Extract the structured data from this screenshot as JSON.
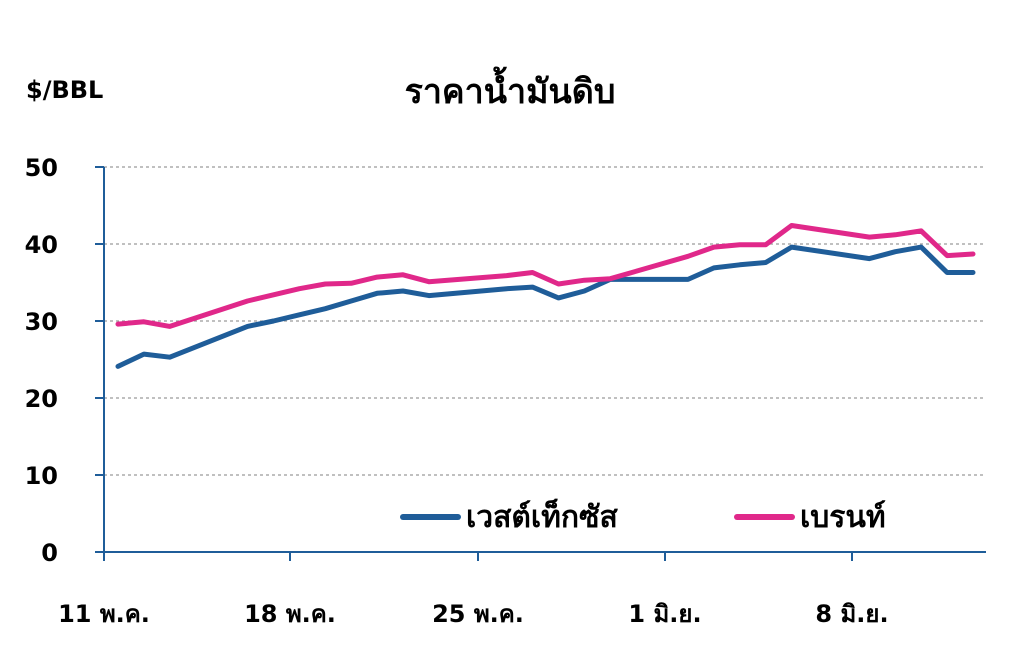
{
  "chart_data": {
    "type": "line",
    "title": "ราคาน้ำมันดิบ",
    "ylabel": "$/BBL",
    "xlabel": "",
    "ylim": [
      0,
      50
    ],
    "y_ticks": [
      "0",
      "10",
      "20",
      "30",
      "40",
      "50"
    ],
    "x_ticks": [
      {
        "label": "11 พ.ค.",
        "index": 0
      },
      {
        "label": "18 พ.ค.",
        "index": 7
      },
      {
        "label": "25 พ.ค.",
        "index": 14
      },
      {
        "label": "1 มิ.ย.",
        "index": 21
      },
      {
        "label": "8 มิ.ย.",
        "index": 28
      }
    ],
    "grid": true,
    "legend_position": "bottom-right",
    "series": [
      {
        "name": "เวสต์เท็กซัส",
        "color": "#1f5d99",
        "points": [
          [
            0,
            24.1
          ],
          [
            1,
            25.7
          ],
          [
            2,
            25.3
          ],
          [
            5,
            29.3
          ],
          [
            6,
            30.0
          ],
          [
            7,
            30.8
          ],
          [
            8,
            31.6
          ],
          [
            9,
            32.6
          ],
          [
            10,
            33.6
          ],
          [
            11,
            33.9
          ],
          [
            12,
            33.3
          ],
          [
            15,
            34.2
          ],
          [
            16,
            34.4
          ],
          [
            17,
            33.0
          ],
          [
            18,
            33.9
          ],
          [
            19,
            35.4
          ],
          [
            22,
            35.4
          ],
          [
            23,
            36.9
          ],
          [
            24,
            37.3
          ],
          [
            25,
            37.6
          ],
          [
            26,
            39.6
          ],
          [
            29,
            38.1
          ],
          [
            30,
            39.0
          ],
          [
            31,
            39.6
          ],
          [
            32,
            36.3
          ],
          [
            33,
            36.3
          ]
        ]
      },
      {
        "name": "เบรนท์",
        "color": "#e0288a",
        "points": [
          [
            0,
            29.6
          ],
          [
            1,
            29.9
          ],
          [
            2,
            29.3
          ],
          [
            5,
            32.6
          ],
          [
            6,
            33.4
          ],
          [
            7,
            34.2
          ],
          [
            8,
            34.8
          ],
          [
            9,
            34.9
          ],
          [
            10,
            35.7
          ],
          [
            11,
            36.0
          ],
          [
            12,
            35.1
          ],
          [
            15,
            35.9
          ],
          [
            16,
            36.3
          ],
          [
            17,
            34.8
          ],
          [
            18,
            35.3
          ],
          [
            19,
            35.5
          ],
          [
            22,
            38.4
          ],
          [
            23,
            39.6
          ],
          [
            24,
            39.9
          ],
          [
            25,
            39.9
          ],
          [
            26,
            42.4
          ],
          [
            29,
            40.9
          ],
          [
            30,
            41.2
          ],
          [
            31,
            41.7
          ],
          [
            32,
            38.5
          ],
          [
            33,
            38.7
          ]
        ]
      }
    ]
  }
}
